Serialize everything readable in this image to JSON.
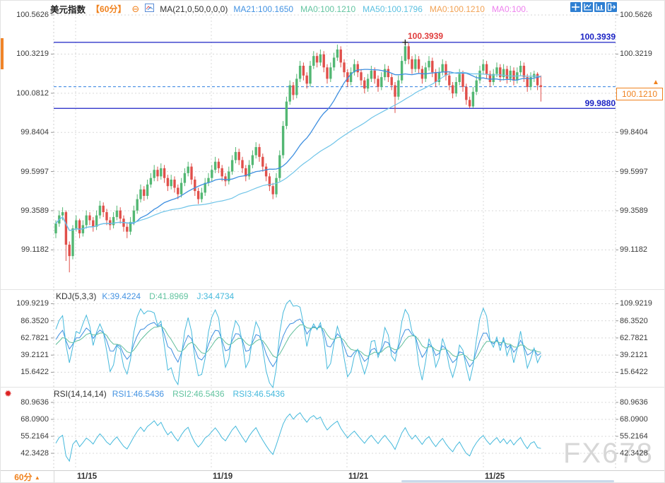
{
  "window": {
    "watermark": "FX678"
  },
  "header": {
    "symbol": "美元指数",
    "timeframe": "【60分】",
    "collapse_glyph": "⊖",
    "ma_settings": "MA(21,0,50,0,0,0)",
    "ma_values": [
      {
        "label": "MA21:100.1650",
        "color": "#4493e2"
      },
      {
        "label": "MA0:100.1210",
        "color": "#63c4a0"
      },
      {
        "label": "MA50:100.1796",
        "color": "#5bc0e0"
      },
      {
        "label": "MA0:100.1210",
        "color": "#f2a254"
      },
      {
        "label": "MA0:100.",
        "color": "#ee82ee"
      }
    ]
  },
  "toolbar": {
    "icons": [
      "crosshair",
      "axis-zoom",
      "chart-style",
      "export"
    ]
  },
  "kdj_header": {
    "title": "KDJ(5,3,3)",
    "values": [
      {
        "label": "K:39.4224",
        "color": "#4493e2"
      },
      {
        "label": "D:41.8969",
        "color": "#63c4a0"
      },
      {
        "label": "J:34.4734",
        "color": "#45b9dc"
      }
    ]
  },
  "rsi_header": {
    "title": "RSI(14,14,14)",
    "settings_glyph": "✹",
    "values": [
      {
        "label": "RSI1:46.5436",
        "color": "#4493e2"
      },
      {
        "label": "RSI2:46.5436",
        "color": "#63c4a0"
      },
      {
        "label": "RSI3:46.5436",
        "color": "#45b9dc"
      }
    ]
  },
  "bottom": {
    "timeframe": "60分",
    "arrow": "▲"
  },
  "colors": {
    "up": "#53b773",
    "down": "#e04f4a",
    "ma21": "#3e8fe0",
    "ma50": "#6fc4e8",
    "k": "#3e8fe0",
    "d": "#5fbd9a",
    "j": "#45b9dc",
    "level": "#1b23c4",
    "last_dash": "#2f7fe0",
    "accent_orange": "#f0821e",
    "label_red": "#e03c3c",
    "grid": "#d8d8d8",
    "tick": "#999999"
  },
  "chart_data": {
    "type": "candlestick",
    "symbol": "美元指数",
    "interval": "60分",
    "dates": [
      "11/15",
      "11/19",
      "11/21",
      "11/25"
    ],
    "y_ticks_main": [
      "100.5626",
      "100.3219",
      "100.0812",
      "99.8404",
      "99.5997",
      "99.3589",
      "99.1182"
    ],
    "levels": {
      "resistance_label": "100.3939",
      "support_label": "99.9880",
      "last_price_label": "100.1210"
    },
    "overlays": [
      {
        "name": "MA21",
        "period": 21,
        "value": 100.165
      },
      {
        "name": "MA50",
        "period": 50,
        "value": 100.1796
      }
    ],
    "kdj": {
      "params": [
        5,
        3,
        3
      ],
      "k": 39.4224,
      "d": 41.8969,
      "j": 34.4734,
      "y_ticks": [
        "109.9219",
        "86.3520",
        "62.7821",
        "39.2121",
        "15.6422"
      ]
    },
    "rsi": {
      "params": [
        14,
        14,
        14
      ],
      "rsi1": 46.5436,
      "rsi2": 46.5436,
      "rsi3": 46.5436,
      "y_ticks": [
        "80.9636",
        "68.0900",
        "55.2164",
        "42.3428"
      ]
    },
    "candles_ohlc": [
      [
        99.22,
        99.3,
        99.19,
        99.28
      ],
      [
        99.28,
        99.36,
        99.26,
        99.33
      ],
      [
        99.33,
        99.38,
        99.3,
        99.35
      ],
      [
        99.35,
        99.36,
        99.05,
        99.15
      ],
      [
        99.15,
        99.17,
        98.98,
        99.08
      ],
      [
        99.08,
        99.27,
        99.06,
        99.25
      ],
      [
        99.25,
        99.33,
        99.23,
        99.3
      ],
      [
        99.3,
        99.31,
        99.19,
        99.22
      ],
      [
        99.22,
        99.3,
        99.2,
        99.27
      ],
      [
        99.27,
        99.36,
        99.25,
        99.33
      ],
      [
        99.33,
        99.35,
        99.27,
        99.3
      ],
      [
        99.3,
        99.32,
        99.23,
        99.26
      ],
      [
        99.26,
        99.36,
        99.24,
        99.33
      ],
      [
        99.33,
        99.42,
        99.31,
        99.39
      ],
      [
        99.39,
        99.41,
        99.32,
        99.35
      ],
      [
        99.35,
        99.37,
        99.27,
        99.3
      ],
      [
        99.3,
        99.32,
        99.24,
        99.27
      ],
      [
        99.27,
        99.35,
        99.25,
        99.32
      ],
      [
        99.32,
        99.39,
        99.3,
        99.36
      ],
      [
        99.36,
        99.38,
        99.28,
        99.31
      ],
      [
        99.31,
        99.33,
        99.23,
        99.26
      ],
      [
        99.26,
        99.28,
        99.19,
        99.23
      ],
      [
        99.23,
        99.32,
        99.21,
        99.29
      ],
      [
        99.29,
        99.39,
        99.27,
        99.36
      ],
      [
        99.36,
        99.46,
        99.34,
        99.43
      ],
      [
        99.43,
        99.52,
        99.41,
        99.49
      ],
      [
        99.49,
        99.51,
        99.42,
        99.45
      ],
      [
        99.45,
        99.55,
        99.43,
        99.52
      ],
      [
        99.52,
        99.59,
        99.5,
        99.56
      ],
      [
        99.56,
        99.64,
        99.54,
        99.61
      ],
      [
        99.61,
        99.63,
        99.54,
        99.57
      ],
      [
        99.57,
        99.65,
        99.55,
        99.62
      ],
      [
        99.62,
        99.64,
        99.53,
        99.56
      ],
      [
        99.56,
        99.58,
        99.48,
        99.51
      ],
      [
        99.51,
        99.58,
        99.49,
        99.55
      ],
      [
        99.55,
        99.57,
        99.47,
        99.5
      ],
      [
        99.5,
        99.52,
        99.43,
        99.46
      ],
      [
        99.46,
        99.56,
        99.44,
        99.53
      ],
      [
        99.53,
        99.62,
        99.51,
        99.59
      ],
      [
        99.59,
        99.66,
        99.57,
        99.63
      ],
      [
        99.63,
        99.65,
        99.52,
        99.55
      ],
      [
        99.55,
        99.57,
        99.45,
        99.48
      ],
      [
        99.48,
        99.5,
        99.4,
        99.43
      ],
      [
        99.43,
        99.5,
        99.41,
        99.47
      ],
      [
        99.47,
        99.56,
        99.45,
        99.53
      ],
      [
        99.53,
        99.59,
        99.51,
        99.56
      ],
      [
        99.56,
        99.64,
        99.54,
        99.61
      ],
      [
        99.61,
        99.69,
        99.59,
        99.66
      ],
      [
        99.66,
        99.68,
        99.59,
        99.62
      ],
      [
        99.62,
        99.64,
        99.54,
        99.57
      ],
      [
        99.57,
        99.59,
        99.51,
        99.54
      ],
      [
        99.54,
        99.63,
        99.52,
        99.6
      ],
      [
        99.6,
        99.7,
        99.58,
        99.67
      ],
      [
        99.67,
        99.75,
        99.65,
        99.72
      ],
      [
        99.72,
        99.74,
        99.64,
        99.67
      ],
      [
        99.67,
        99.69,
        99.59,
        99.62
      ],
      [
        99.62,
        99.64,
        99.54,
        99.57
      ],
      [
        99.57,
        99.67,
        99.55,
        99.64
      ],
      [
        99.64,
        99.73,
        99.62,
        99.7
      ],
      [
        99.7,
        99.78,
        99.68,
        99.75
      ],
      [
        99.75,
        99.77,
        99.66,
        99.69
      ],
      [
        99.69,
        99.71,
        99.6,
        99.63
      ],
      [
        99.63,
        99.65,
        99.54,
        99.57
      ],
      [
        99.57,
        99.59,
        99.48,
        99.51
      ],
      [
        99.51,
        99.53,
        99.43,
        99.46
      ],
      [
        99.46,
        99.59,
        99.44,
        99.56
      ],
      [
        99.56,
        99.73,
        99.54,
        99.7
      ],
      [
        99.7,
        99.91,
        99.68,
        99.88
      ],
      [
        99.88,
        100.06,
        99.86,
        100.03
      ],
      [
        100.03,
        100.16,
        100.01,
        100.13
      ],
      [
        100.13,
        100.15,
        100.04,
        100.07
      ],
      [
        100.07,
        100.2,
        100.05,
        100.17
      ],
      [
        100.17,
        100.28,
        100.15,
        100.25
      ],
      [
        100.25,
        100.27,
        100.16,
        100.19
      ],
      [
        100.19,
        100.21,
        100.11,
        100.14
      ],
      [
        100.14,
        100.28,
        100.12,
        100.25
      ],
      [
        100.25,
        100.34,
        100.23,
        100.31
      ],
      [
        100.31,
        100.33,
        100.24,
        100.27
      ],
      [
        100.27,
        100.35,
        100.25,
        100.32
      ],
      [
        100.32,
        100.34,
        100.21,
        100.24
      ],
      [
        100.24,
        100.26,
        100.14,
        100.17
      ],
      [
        100.17,
        100.27,
        100.15,
        100.24
      ],
      [
        100.24,
        100.33,
        100.22,
        100.3
      ],
      [
        100.3,
        100.38,
        100.28,
        100.35
      ],
      [
        100.35,
        100.37,
        100.24,
        100.27
      ],
      [
        100.27,
        100.29,
        100.18,
        100.21
      ],
      [
        100.21,
        100.23,
        100.12,
        100.15
      ],
      [
        100.15,
        100.24,
        100.13,
        100.21
      ],
      [
        100.21,
        100.29,
        100.19,
        100.26
      ],
      [
        100.26,
        100.28,
        100.18,
        100.21
      ],
      [
        100.21,
        100.23,
        100.13,
        100.16
      ],
      [
        100.16,
        100.18,
        100.08,
        100.11
      ],
      [
        100.11,
        100.2,
        100.09,
        100.17
      ],
      [
        100.17,
        100.25,
        100.15,
        100.22
      ],
      [
        100.22,
        100.24,
        100.14,
        100.17
      ],
      [
        100.17,
        100.19,
        100.09,
        100.12
      ],
      [
        100.12,
        100.21,
        100.1,
        100.18
      ],
      [
        100.18,
        100.26,
        100.16,
        100.23
      ],
      [
        100.23,
        100.25,
        100.15,
        100.18
      ],
      [
        100.18,
        100.2,
        100.1,
        100.13
      ],
      [
        100.13,
        100.15,
        99.96,
        100.06
      ],
      [
        100.06,
        100.19,
        100.04,
        100.16
      ],
      [
        100.16,
        100.31,
        100.14,
        100.28
      ],
      [
        100.28,
        100.394,
        100.26,
        100.37
      ],
      [
        100.37,
        100.39,
        100.26,
        100.29
      ],
      [
        100.29,
        100.31,
        100.2,
        100.23
      ],
      [
        100.23,
        100.32,
        100.21,
        100.29
      ],
      [
        100.29,
        100.31,
        100.2,
        100.23
      ],
      [
        100.23,
        100.25,
        100.14,
        100.17
      ],
      [
        100.17,
        100.27,
        100.15,
        100.24
      ],
      [
        100.24,
        100.31,
        100.22,
        100.28
      ],
      [
        100.28,
        100.3,
        100.18,
        100.21
      ],
      [
        100.21,
        100.23,
        100.12,
        100.15
      ],
      [
        100.15,
        100.24,
        100.13,
        100.21
      ],
      [
        100.21,
        100.29,
        100.19,
        100.26
      ],
      [
        100.26,
        100.28,
        100.16,
        100.19
      ],
      [
        100.19,
        100.21,
        100.1,
        100.13
      ],
      [
        100.13,
        100.15,
        100.05,
        100.08
      ],
      [
        100.08,
        100.18,
        100.06,
        100.15
      ],
      [
        100.15,
        100.23,
        100.13,
        100.2
      ],
      [
        100.2,
        100.22,
        100.09,
        100.12
      ],
      [
        100.12,
        100.14,
        100.01,
        100.04
      ],
      [
        100.04,
        100.06,
        99.99,
        100.0
      ],
      [
        100.0,
        100.12,
        99.99,
        100.09
      ],
      [
        100.09,
        100.19,
        100.07,
        100.16
      ],
      [
        100.16,
        100.25,
        100.14,
        100.22
      ],
      [
        100.22,
        100.29,
        100.2,
        100.26
      ],
      [
        100.26,
        100.28,
        100.17,
        100.2
      ],
      [
        100.2,
        100.22,
        100.12,
        100.15
      ],
      [
        100.15,
        100.23,
        100.13,
        100.2
      ],
      [
        100.2,
        100.27,
        100.18,
        100.24
      ],
      [
        100.24,
        100.26,
        100.15,
        100.18
      ],
      [
        100.18,
        100.26,
        100.16,
        100.23
      ],
      [
        100.23,
        100.25,
        100.14,
        100.17
      ],
      [
        100.17,
        100.25,
        100.15,
        100.22
      ],
      [
        100.22,
        100.24,
        100.13,
        100.16
      ],
      [
        100.16,
        100.24,
        100.14,
        100.21
      ],
      [
        100.21,
        100.28,
        100.19,
        100.25
      ],
      [
        100.25,
        100.27,
        100.15,
        100.18
      ],
      [
        100.18,
        100.2,
        100.09,
        100.12
      ],
      [
        100.12,
        100.21,
        100.1,
        100.18
      ],
      [
        100.18,
        100.22,
        100.15,
        100.2
      ],
      [
        100.2,
        100.21,
        100.1,
        100.13
      ],
      [
        100.13,
        100.19,
        100.03,
        100.12
      ]
    ]
  }
}
